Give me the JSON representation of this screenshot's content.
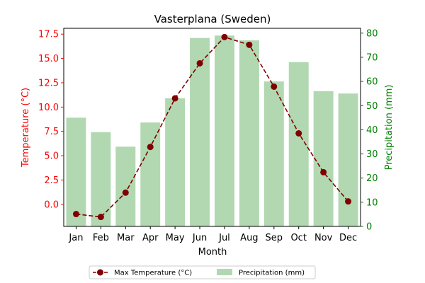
{
  "colors": {
    "temperature": "#800000",
    "temperature_axis": "#ff0000",
    "precipitation_bar": "#b1d8b1",
    "precipitation_axis": "#008000"
  },
  "chart_data": {
    "type": "bar",
    "title": "Vasterplana (Sweden)",
    "xlabel": "Month",
    "categories": [
      "Jan",
      "Feb",
      "Mar",
      "Apr",
      "May",
      "Jun",
      "Jul",
      "Aug",
      "Sep",
      "Oct",
      "Nov",
      "Dec"
    ],
    "y_left": {
      "label": "Temperature (°C)",
      "ticks": [
        "0.0",
        "2.5",
        "5.0",
        "7.5",
        "10.0",
        "12.5",
        "15.0",
        "17.5"
      ],
      "tick_values": [
        0,
        2.5,
        5,
        7.5,
        10,
        12.5,
        15,
        17.5
      ],
      "ylim": [
        -2.27,
        18.1
      ]
    },
    "y_right": {
      "label": "Precipitation (mm)",
      "ticks": [
        "0",
        "10",
        "20",
        "30",
        "40",
        "50",
        "60",
        "70",
        "80"
      ],
      "tick_values": [
        0,
        10,
        20,
        30,
        40,
        50,
        60,
        70,
        80
      ],
      "ylim": [
        0,
        82
      ]
    },
    "series": [
      {
        "name": "Max Temperature (°C)",
        "type": "line",
        "axis": "left",
        "style": "dashed-with-markers",
        "values": [
          -1.0,
          -1.3,
          1.2,
          5.9,
          10.9,
          14.5,
          17.2,
          16.4,
          12.1,
          7.3,
          3.3,
          0.3
        ]
      },
      {
        "name": "Precipitation (mm)",
        "type": "bar",
        "axis": "right",
        "values": [
          45,
          39,
          33,
          43,
          53,
          78,
          79,
          77,
          60,
          68,
          56,
          55
        ]
      }
    ],
    "legend": {
      "placement": "bottom-center",
      "entries": [
        "Max Temperature (°C)",
        "Precipitation (mm)"
      ]
    },
    "grid": false
  }
}
